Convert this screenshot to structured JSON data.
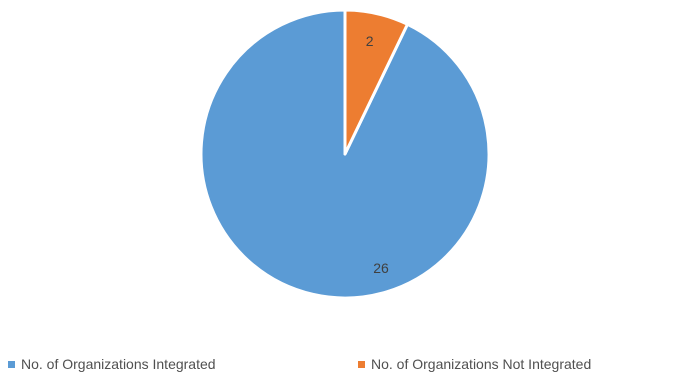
{
  "chart_data": {
    "type": "pie",
    "title": "",
    "series": [
      {
        "name": "No. of Organizations Integrated",
        "value": 26,
        "color": "#5b9bd5"
      },
      {
        "name": "No. of Organizations Not Integrated",
        "value": 2,
        "color": "#ed7d31"
      }
    ],
    "data_labels": [
      "26",
      "2"
    ],
    "legend_position": "bottom",
    "start_angle": "top",
    "direction": "counterclockwise"
  }
}
